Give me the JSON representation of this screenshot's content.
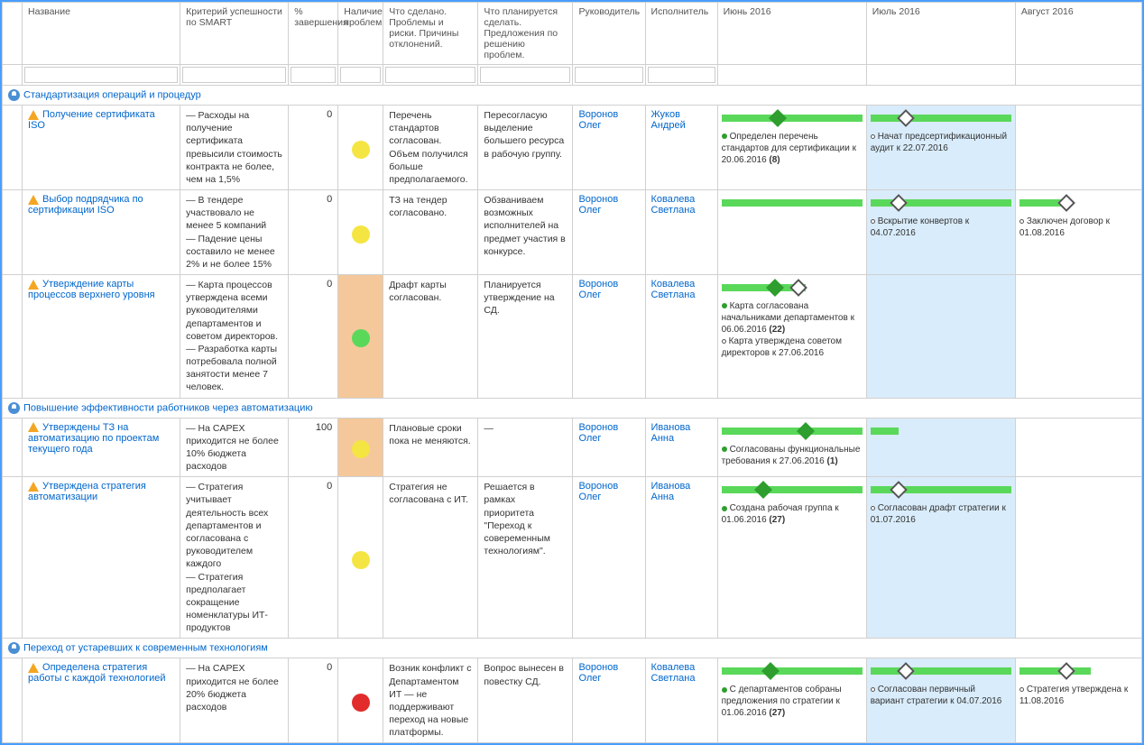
{
  "headers": {
    "name": "Название",
    "criteria": "Критерий успешности по SMART",
    "pct": "% завершения",
    "status": "Наличие проблем",
    "done": "Что сделано. Проблемы и риски. Причины отклонений.",
    "plan": "Что планируется сделать. Предложения по решению проблем.",
    "manager": "Руководитель",
    "executor": "Исполнитель",
    "month1": "Июнь 2016",
    "month2": "Июль 2016",
    "month3": "Август 2016"
  },
  "colors": {
    "yellow": "#f5e542",
    "green": "#5ad85a",
    "red": "#e22b2b",
    "lightOrange": "#f4c89b",
    "highlight": "#d9ecfb"
  },
  "groups": [
    {
      "title": "Стандартизация операций и процедур",
      "rows": [
        {
          "name": "Получение сертификата ISO",
          "criteria": "— Расходы на получение сертификата превысили стоимость контракта не более, чем на 1,5%",
          "pct": "0",
          "status_color": "#f5e542",
          "status_bg": false,
          "done": "Перечень стандартов согласован. Объем получился больше предполагаемого.",
          "plan": "Пересогласую выделение большего ресурса в рабочую группу.",
          "manager": "Воронов Олег",
          "executor": "Жуков Андрей",
          "months": [
            {
              "hl": false,
              "bar": {
                "l": 0,
                "r": 0
              },
              "d": [
                {
                  "p": 40,
                  "f": true
                }
              ],
              "txt": [
                {
                  "dot": "green",
                  "t": "Определен перечень стандартов для сертификации к 20.06.2016",
                  "b": "(8)"
                }
              ]
            },
            {
              "hl": true,
              "bar": {
                "l": 0,
                "r": 0
              },
              "d": [
                {
                  "p": 25,
                  "f": false
                }
              ],
              "txt": [
                {
                  "dot": "open",
                  "t": "Начат предсертификационный аудит к 22.07.2016",
                  "b": ""
                }
              ]
            },
            {
              "hl": false,
              "bar": null,
              "d": [],
              "txt": []
            }
          ]
        },
        {
          "name": "Выбор подрядчика по сертификации ISO",
          "criteria": "— В тендере участвовало не менее 5 компаний\n— Падение цены составило не менее 2% и не более 15%",
          "pct": "0",
          "status_color": "#f5e542",
          "status_bg": false,
          "done": "ТЗ на тендер согласовано.",
          "plan": "Обзваниваем возможных исполнителей на предмет участия в конкурсе.",
          "manager": "Воронов Олег",
          "executor": "Ковалева Светлана",
          "months": [
            {
              "hl": false,
              "bar": {
                "l": 0,
                "r": 0
              },
              "d": [],
              "txt": []
            },
            {
              "hl": true,
              "bar": {
                "l": 0,
                "r": 0
              },
              "d": [
                {
                  "p": 20,
                  "f": false
                }
              ],
              "txt": [
                {
                  "dot": "open",
                  "t": "Вскрытие конвертов к 04.07.2016",
                  "b": ""
                }
              ]
            },
            {
              "hl": false,
              "bar": {
                "l": 0,
                "r": 60
              },
              "d": [
                {
                  "p": 40,
                  "f": false
                }
              ],
              "txt": [
                {
                  "dot": "open",
                  "t": "Заключен договор к 01.08.2016",
                  "b": ""
                }
              ]
            }
          ]
        },
        {
          "name": "Утверждение карты процессов верхнего уровня",
          "criteria": "— Карта процессов утверждена всеми руководителями департаментов и советом директоров.\n— Разработка карты потребовала полной занятости менее 7 человек.",
          "pct": "0",
          "status_color": "#5ad85a",
          "status_bg": true,
          "done": "Драфт карты согласован.",
          "plan": "Планируется утверждение на СД.",
          "manager": "Воронов Олег",
          "executor": "Ковалева Светлана",
          "months": [
            {
              "hl": false,
              "bar": {
                "l": 0,
                "r": 40
              },
              "d": [
                {
                  "p": 38,
                  "f": true
                },
                {
                  "p": 55,
                  "f": false
                }
              ],
              "txt": [
                {
                  "dot": "green",
                  "t": "Карта согласована начальниками департаментов к 06.06.2016",
                  "b": "(22)"
                },
                {
                  "dot": "open",
                  "t": "Карта утверждена советом директоров к 27.06.2016",
                  "b": ""
                }
              ]
            },
            {
              "hl": true,
              "bar": null,
              "d": [],
              "txt": []
            },
            {
              "hl": false,
              "bar": null,
              "d": [],
              "txt": []
            }
          ]
        }
      ]
    },
    {
      "title": "Повышение эффективности работников через автоматизацию",
      "rows": [
        {
          "name": "Утверждены ТЗ на автоматизацию по проектам текущего года",
          "criteria": "— На CAPEX приходится не более 10% бюджета расходов",
          "pct": "100",
          "status_color": "#f5e542",
          "status_bg": true,
          "done": "Плановые сроки пока не меняются.",
          "plan": "—",
          "manager": "Воронов Олег",
          "executor": "Иванова Анна",
          "months": [
            {
              "hl": false,
              "bar": {
                "l": 0,
                "r": 0
              },
              "d": [
                {
                  "p": 60,
                  "f": true
                }
              ],
              "txt": [
                {
                  "dot": "green",
                  "t": "Согласованы функциональные требования к 27.06.2016",
                  "b": "(1)"
                }
              ]
            },
            {
              "hl": true,
              "bar": {
                "l": 0,
                "r": 80
              },
              "d": [],
              "txt": []
            },
            {
              "hl": false,
              "bar": null,
              "d": [],
              "txt": []
            }
          ]
        },
        {
          "name": "Утверждена стратегия автоматизации",
          "criteria": "— Стратегия учитывает деятельность всех департаментов и согласована с руководителем каждого\n— Стратегия предполагает сокращение номенклатуры ИТ-продуктов",
          "pct": "0",
          "status_color": "#f5e542",
          "status_bg": false,
          "done": "Стратегия не согласована с ИТ.",
          "plan": "Решается в рамках приоритета \"Переход к совеременным технологиям\".",
          "manager": "Воронов Олег",
          "executor": "Иванова Анна",
          "months": [
            {
              "hl": false,
              "bar": {
                "l": 0,
                "r": 0
              },
              "d": [
                {
                  "p": 30,
                  "f": true
                }
              ],
              "txt": [
                {
                  "dot": "green",
                  "t": "Создана рабочая группа к 01.06.2016",
                  "b": "(27)"
                }
              ]
            },
            {
              "hl": true,
              "bar": {
                "l": 0,
                "r": 0
              },
              "d": [
                {
                  "p": 20,
                  "f": false
                }
              ],
              "txt": [
                {
                  "dot": "open",
                  "t": "Согласован драфт стратегии к 01.07.2016",
                  "b": ""
                }
              ]
            },
            {
              "hl": false,
              "bar": null,
              "d": [],
              "txt": []
            }
          ]
        }
      ]
    },
    {
      "title": "Переход от устаревших к современным технологиям",
      "rows": [
        {
          "name": "Определена стратегия работы с каждой технологией",
          "criteria": "— На CAPEX приходится не более 20% бюджета расходов",
          "pct": "0",
          "status_color": "#e22b2b",
          "status_bg": false,
          "done": "Возник конфликт с Департаментом ИТ — не поддерживают переход на новые платформы.",
          "plan": "Вопрос вынесен в повестку СД.",
          "manager": "Воронов Олег",
          "executor": "Ковалева Светлана",
          "months": [
            {
              "hl": false,
              "bar": {
                "l": 0,
                "r": 0
              },
              "d": [
                {
                  "p": 35,
                  "f": true
                }
              ],
              "txt": [
                {
                  "dot": "green",
                  "t": "С департаментов собраны предложения по стратегии к 01.06.2016",
                  "b": "(27)"
                }
              ]
            },
            {
              "hl": true,
              "bar": {
                "l": 0,
                "r": 0
              },
              "d": [
                {
                  "p": 25,
                  "f": false
                }
              ],
              "txt": [
                {
                  "dot": "open",
                  "t": "Согласован первичный вариант стратегии к 04.07.2016",
                  "b": ""
                }
              ]
            },
            {
              "hl": false,
              "bar": {
                "l": 0,
                "r": 40
              },
              "d": [
                {
                  "p": 40,
                  "f": false
                }
              ],
              "txt": [
                {
                  "dot": "open",
                  "t": "Стратегия утверждена к 11.08.2016",
                  "b": ""
                }
              ]
            }
          ]
        }
      ]
    }
  ]
}
